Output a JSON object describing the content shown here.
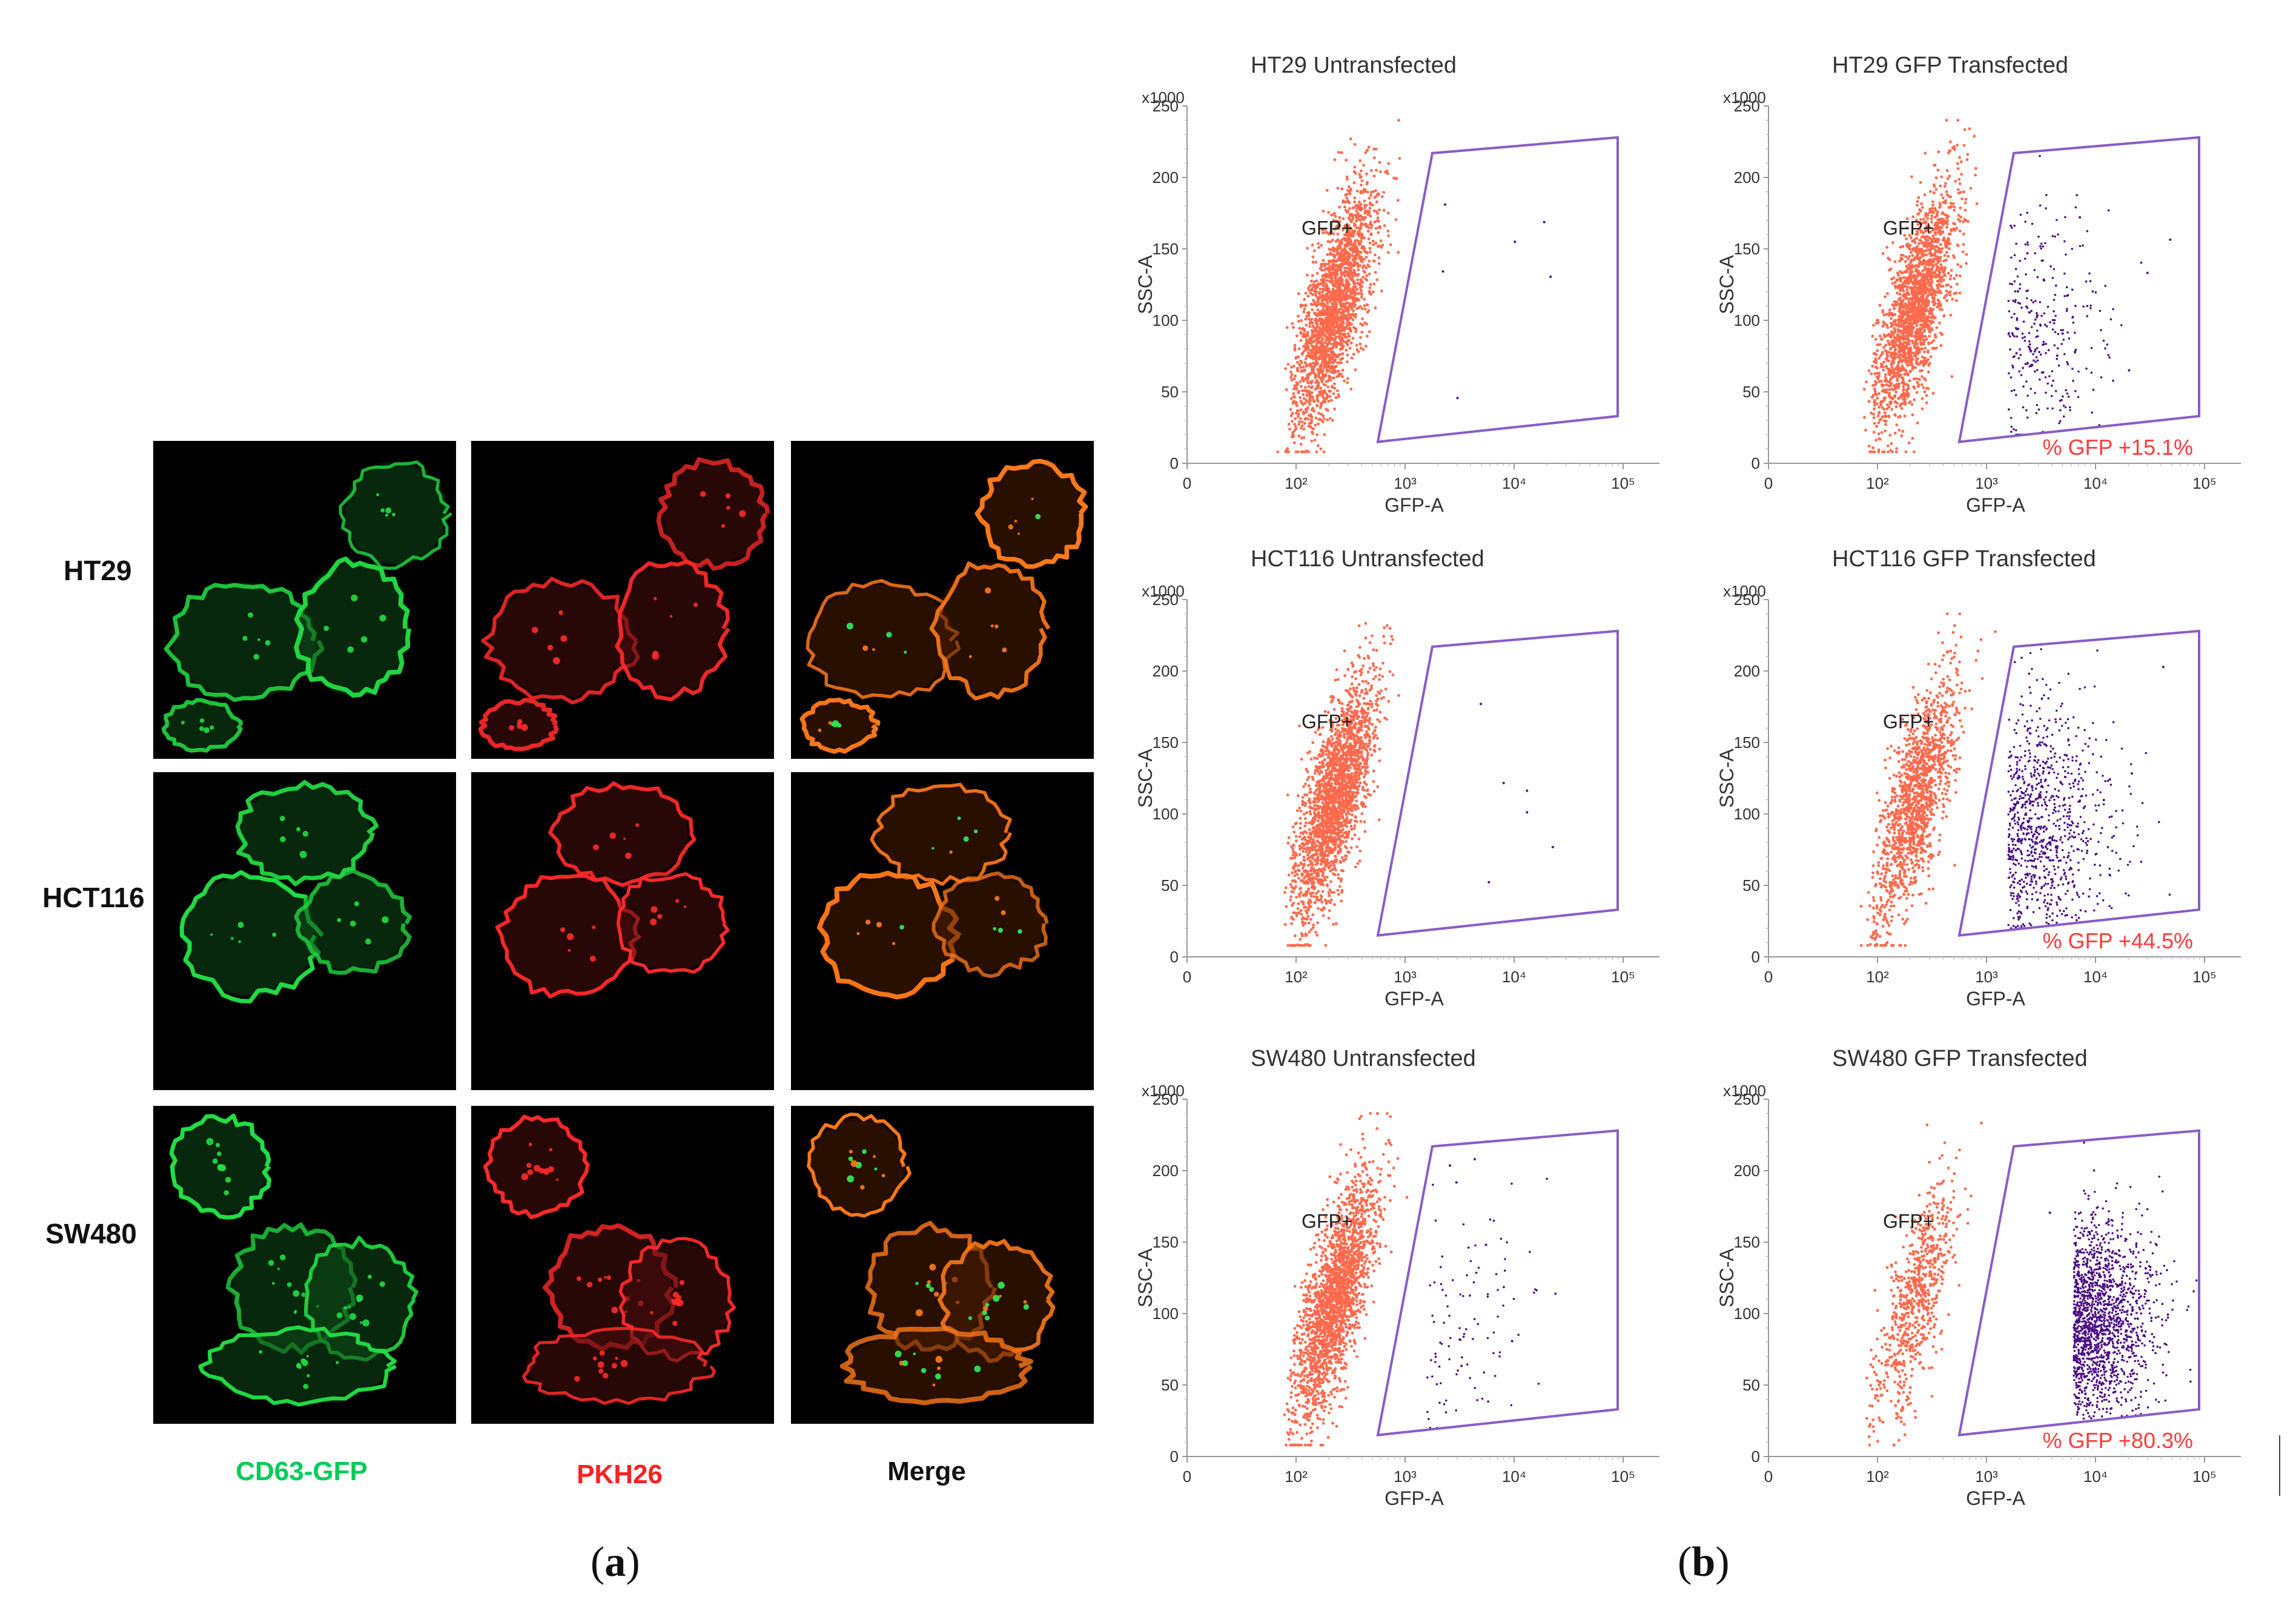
{
  "panel_a": {
    "label": "a",
    "rows": [
      "HT29",
      "HCT116",
      "SW480"
    ],
    "columns": [
      {
        "label": "CD63-GFP",
        "color": "#00cc55"
      },
      {
        "label": "PKH26",
        "color": "#ff2020"
      },
      {
        "label": "Merge",
        "color": "#111111"
      }
    ]
  },
  "panel_b": {
    "label": "b",
    "colors": {
      "negative": "#ff6a4d",
      "positive": "#4b0f82",
      "gate": "#8a5cc8",
      "percent": "#ff3b3b"
    },
    "plots": [
      {
        "title": "HT29 Untransfected",
        "gate_label": "GFP+",
        "percent": "",
        "x_label": "GFP-A",
        "y_label": "SSC-A",
        "y_multiplier": "x1000",
        "y_ticks": [
          "0",
          "50",
          "100",
          "150",
          "200",
          "250"
        ],
        "x_ticks": [
          "0",
          "10²",
          "10³",
          "10⁴",
          "10⁵"
        ],
        "pop_pos": 0.0
      },
      {
        "title": "HT29 GFP Transfected",
        "gate_label": "GFP+",
        "percent": "% GFP +15.1%",
        "x_label": "GFP-A",
        "y_label": "SSC-A",
        "y_multiplier": "x1000",
        "y_ticks": [
          "0",
          "50",
          "100",
          "150",
          "200",
          "250"
        ],
        "x_ticks": [
          "0",
          "10²",
          "10³",
          "10⁴",
          "10⁵"
        ],
        "pop_pos": 0.151
      },
      {
        "title": "HCT116 Untransfected",
        "gate_label": "GFP+",
        "percent": "",
        "x_label": "GFP-A",
        "y_label": "SSC-A",
        "y_multiplier": "x1000",
        "y_ticks": [
          "0",
          "50",
          "100",
          "150",
          "200",
          "250"
        ],
        "x_ticks": [
          "0",
          "10²",
          "10³",
          "10⁴",
          "10⁵"
        ],
        "pop_pos": 0.0
      },
      {
        "title": "HCT116 GFP Transfected",
        "gate_label": "GFP+",
        "percent": "% GFP +44.5%",
        "x_label": "GFP-A",
        "y_label": "SSC-A",
        "y_multiplier": "x1000",
        "y_ticks": [
          "0",
          "50",
          "100",
          "150",
          "200",
          "250"
        ],
        "x_ticks": [
          "0",
          "10²",
          "10³",
          "10⁴",
          "10⁵"
        ],
        "pop_pos": 0.445
      },
      {
        "title": "SW480 Untransfected",
        "gate_label": "GFP+",
        "percent": "",
        "x_label": "GFP-A",
        "y_label": "SSC-A",
        "y_multiplier": "x1000",
        "y_ticks": [
          "0",
          "50",
          "100",
          "150",
          "200",
          "250"
        ],
        "x_ticks": [
          "0",
          "10²",
          "10³",
          "10⁴",
          "10⁵"
        ],
        "pop_pos": 0.05
      },
      {
        "title": "SW480 GFP Transfected",
        "gate_label": "GFP+",
        "percent": "% GFP +80.3%",
        "x_label": "GFP-A",
        "y_label": "SSC-A",
        "y_multiplier": "x1000",
        "y_ticks": [
          "0",
          "50",
          "100",
          "150",
          "200",
          "250"
        ],
        "x_ticks": [
          "0",
          "10²",
          "10³",
          "10⁴",
          "10⁵"
        ],
        "pop_pos": 0.803
      }
    ]
  },
  "chart_data": [
    {
      "type": "scatter",
      "title": "HT29 Untransfected",
      "xlabel": "GFP-A",
      "ylabel": "SSC-A",
      "ylim": [
        0,
        250
      ],
      "y_unit": "x1000",
      "x_scale": "log",
      "gate_label": "GFP+",
      "percent_gfp_positive": null
    },
    {
      "type": "scatter",
      "title": "HT29 GFP Transfected",
      "xlabel": "GFP-A",
      "ylabel": "SSC-A",
      "ylim": [
        0,
        250
      ],
      "y_unit": "x1000",
      "x_scale": "log",
      "gate_label": "GFP+",
      "percent_gfp_positive": 15.1
    },
    {
      "type": "scatter",
      "title": "HCT116 Untransfected",
      "xlabel": "GFP-A",
      "ylabel": "SSC-A",
      "ylim": [
        0,
        250
      ],
      "y_unit": "x1000",
      "x_scale": "log",
      "gate_label": "GFP+",
      "percent_gfp_positive": null
    },
    {
      "type": "scatter",
      "title": "HCT116 GFP Transfected",
      "xlabel": "GFP-A",
      "ylabel": "SSC-A",
      "ylim": [
        0,
        250
      ],
      "y_unit": "x1000",
      "x_scale": "log",
      "gate_label": "GFP+",
      "percent_gfp_positive": 44.5
    },
    {
      "type": "scatter",
      "title": "SW480 Untransfected",
      "xlabel": "GFP-A",
      "ylabel": "SSC-A",
      "ylim": [
        0,
        250
      ],
      "y_unit": "x1000",
      "x_scale": "log",
      "gate_label": "GFP+",
      "percent_gfp_positive": null
    },
    {
      "type": "scatter",
      "title": "SW480 GFP Transfected",
      "xlabel": "GFP-A",
      "ylabel": "SSC-A",
      "ylim": [
        0,
        250
      ],
      "y_unit": "x1000",
      "x_scale": "log",
      "gate_label": "GFP+",
      "percent_gfp_positive": 80.3
    }
  ]
}
